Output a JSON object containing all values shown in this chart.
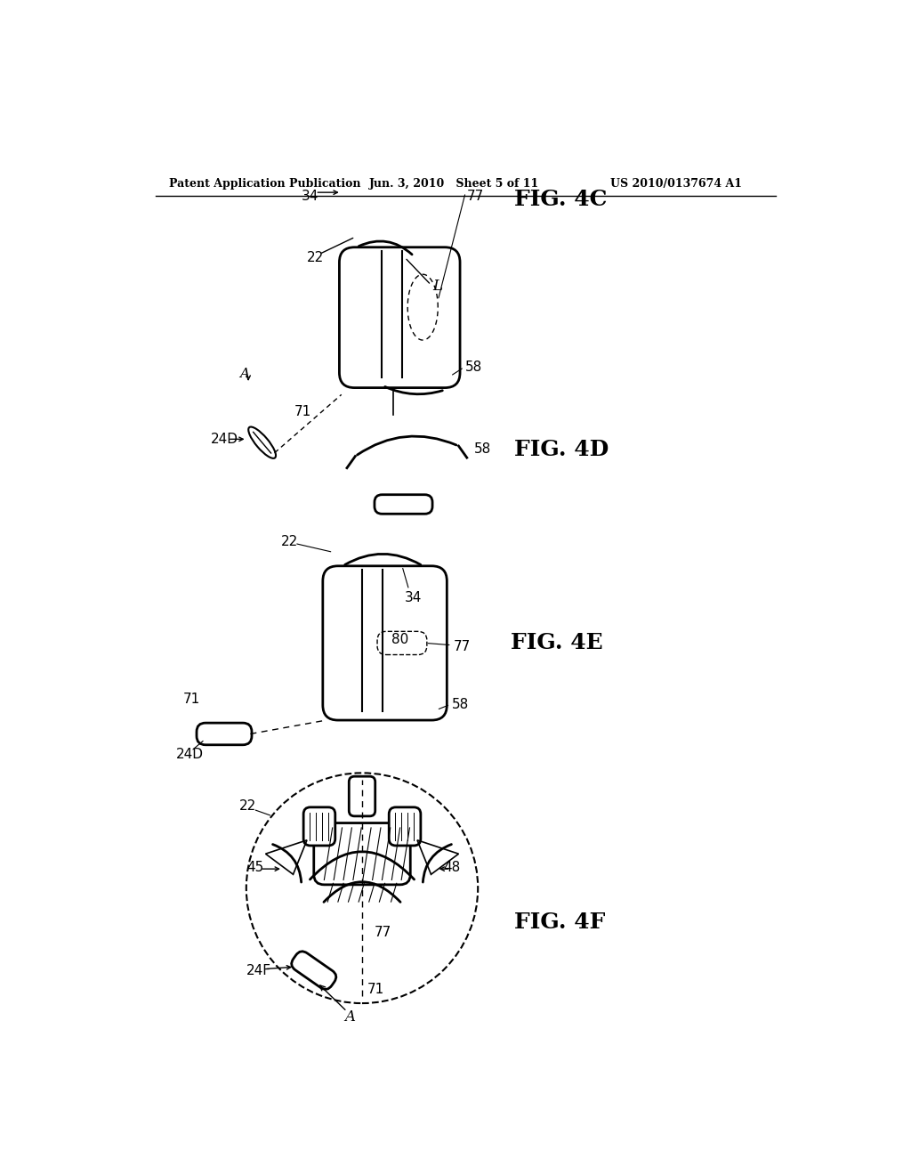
{
  "bg_color": "#ffffff",
  "line_color": "#000000",
  "header_left": "Patent Application Publication",
  "header_mid": "Jun. 3, 2010   Sheet 5 of 11",
  "header_right": "US 2010/0137674 A1",
  "fig4c_label": "FIG. 4C",
  "fig4d_label": "FIG. 4D",
  "fig4e_label": "FIG. 4E",
  "fig4f_label": "FIG. 4F"
}
